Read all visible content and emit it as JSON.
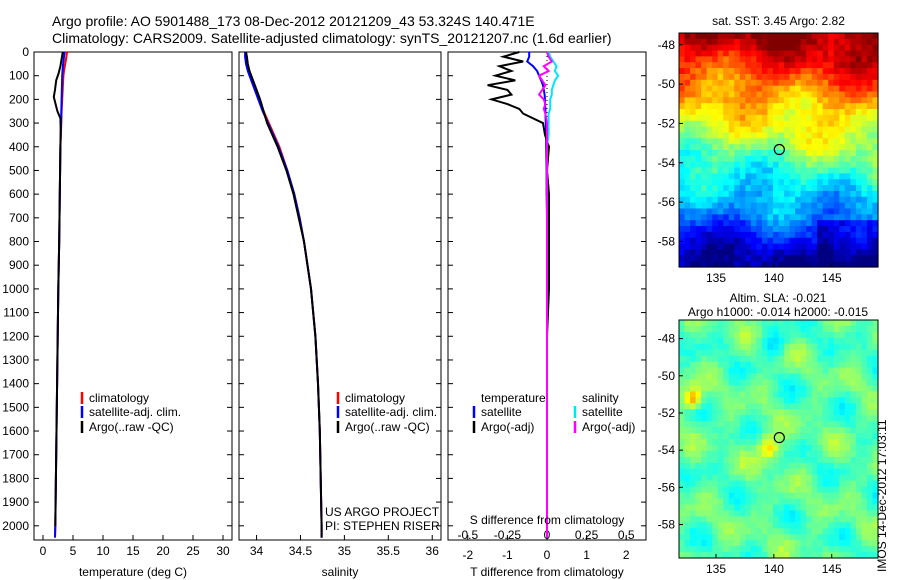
{
  "header": {
    "line1": "Argo profile: AO 5901488_173 08-Dec-2012 20121209_43 53.324S 140.471E",
    "line2": "Climatology: CARS2009. Satellite-adjusted climatology: synTS_20121207.nc (1.6d earlier)"
  },
  "credit": "IMOS 14-Dec-2012 17:03:11",
  "colors": {
    "climatology": "#ff0000",
    "satellite": "#0000ff",
    "argo": "#000000",
    "salinity_satellite": "#00e5ff",
    "salinity_argo": "#ff00ff"
  },
  "chart_data": [
    {
      "type": "line",
      "name": "temperature-profile",
      "xlabel": "temperature (deg C)",
      "ylabel": "",
      "xlim": [
        -1.5,
        31.5
      ],
      "ylim": [
        2060,
        0
      ],
      "xticks": [
        "0",
        "5",
        "10",
        "15",
        "20",
        "25",
        "30"
      ],
      "yticks": [
        "0",
        "100",
        "200",
        "300",
        "400",
        "500",
        "600",
        "700",
        "800",
        "900",
        "1000",
        "1100",
        "1200",
        "1300",
        "1400",
        "1500",
        "1600",
        "1700",
        "1800",
        "1900",
        "2000"
      ],
      "y_depth": [
        0,
        20,
        50,
        80,
        100,
        150,
        200,
        250,
        300,
        400,
        500,
        600,
        700,
        800,
        1000,
        1200,
        1400,
        1600,
        1800,
        2000,
        2050
      ],
      "legend": [
        "climatology",
        "satellite-adj. clim.",
        "Argo(..raw -QC)"
      ],
      "series": [
        {
          "name": "climatology",
          "color": "#ff0000",
          "values": [
            4.0,
            3.9,
            3.7,
            3.5,
            3.4,
            3.3,
            3.2,
            3.1,
            3.05,
            2.9,
            2.85,
            2.8,
            2.75,
            2.7,
            2.55,
            2.45,
            2.35,
            2.25,
            2.15,
            2.05,
            2.0
          ]
        },
        {
          "name": "satellite-adj. clim.",
          "color": "#0000ff",
          "values": [
            3.6,
            3.5,
            3.35,
            3.25,
            3.2,
            3.15,
            3.1,
            3.05,
            3.0,
            2.9,
            2.85,
            2.8,
            2.75,
            2.7,
            2.55,
            2.45,
            2.35,
            2.25,
            2.15,
            2.05,
            2.0
          ]
        },
        {
          "name": "Argo(..raw -QC)",
          "color": "#000000",
          "y_depth": [
            0,
            30,
            60,
            90,
            120,
            160,
            190,
            220,
            250,
            280,
            330,
            400,
            500,
            600,
            800,
            1000,
            1400,
            1800,
            2000
          ],
          "values": [
            3.3,
            3.1,
            2.9,
            2.6,
            2.2,
            2.0,
            1.8,
            2.1,
            2.4,
            2.9,
            2.95,
            2.9,
            2.85,
            2.8,
            2.7,
            2.55,
            2.35,
            2.15,
            2.05
          ]
        }
      ]
    },
    {
      "type": "line",
      "name": "salinity-profile",
      "xlabel": "salinity",
      "ylabel": "",
      "xlim": [
        33.8,
        36.1
      ],
      "ylim": [
        2060,
        0
      ],
      "xticks": [
        "34",
        "34.5",
        "35",
        "35.5",
        "36"
      ],
      "y_depth": [
        0,
        20,
        50,
        80,
        100,
        150,
        200,
        250,
        300,
        400,
        500,
        600,
        700,
        800,
        1000,
        1200,
        1400,
        1600,
        1800,
        2000,
        2050
      ],
      "legend": [
        "climatology",
        "satellite-adj. clim.",
        "Argo(..raw -QC)"
      ],
      "series": [
        {
          "name": "climatology",
          "color": "#ff0000",
          "values": [
            33.88,
            33.88,
            33.89,
            33.91,
            33.93,
            33.98,
            34.03,
            34.08,
            34.14,
            34.26,
            34.35,
            34.43,
            34.49,
            34.54,
            34.62,
            34.67,
            34.7,
            34.72,
            34.73,
            34.74,
            34.74
          ]
        },
        {
          "name": "satellite-adj. clim.",
          "color": "#0000ff",
          "values": [
            33.87,
            33.87,
            33.88,
            33.9,
            33.92,
            33.97,
            34.02,
            34.07,
            34.13,
            34.25,
            34.35,
            34.43,
            34.49,
            34.54,
            34.62,
            34.67,
            34.7,
            34.72,
            34.73,
            34.74,
            34.74
          ]
        },
        {
          "name": "Argo(..raw -QC)",
          "color": "#000000",
          "values": [
            33.88,
            33.89,
            33.9,
            33.92,
            33.94,
            33.99,
            34.04,
            34.08,
            34.12,
            34.24,
            34.34,
            34.42,
            34.48,
            34.54,
            34.62,
            34.67,
            34.7,
            34.72,
            34.73,
            34.74,
            34.74
          ]
        }
      ],
      "annotations": [
        "US ARGO PROJECT",
        "PI: STEPHEN RISER"
      ]
    },
    {
      "type": "line",
      "name": "difference-profile",
      "xlabel": "T difference from climatology",
      "x2label": "S difference from climatology",
      "xlim": [
        -2.5,
        2.5
      ],
      "x2lim": [
        -0.625,
        0.625
      ],
      "ylim": [
        2060,
        0
      ],
      "xticks": [
        "-2",
        "-1",
        "0",
        "1",
        "2"
      ],
      "x2ticks": [
        "-0.5",
        "-0.25",
        "0",
        "0.25",
        "0.5"
      ],
      "legend_headers": [
        "temperature",
        "salinity"
      ],
      "legend": [
        "satellite",
        "Argo(-adj)",
        "satellite",
        "Argo(-adj)"
      ],
      "y_depth": [
        0,
        20,
        40,
        60,
        80,
        100,
        120,
        140,
        160,
        180,
        200,
        220,
        240,
        260,
        300,
        350,
        400,
        500,
        600,
        700,
        800,
        1000,
        1200,
        1500,
        1800,
        2000,
        2050
      ],
      "series": [
        {
          "name": "temperature satellite",
          "color": "#0000ff",
          "axis": "T",
          "values": [
            -0.45,
            -0.45,
            -0.5,
            -0.35,
            -0.25,
            -0.2,
            -0.15,
            -0.1,
            -0.08,
            -0.06,
            -0.05,
            -0.05,
            -0.04,
            -0.04,
            -0.03,
            -0.02,
            -0.02,
            -0.01,
            -0.01,
            0,
            0,
            0,
            0,
            0,
            0,
            0,
            0
          ]
        },
        {
          "name": "temperature Argo(-adj)",
          "color": "#000000",
          "axis": "T",
          "values": [
            -0.7,
            -1.1,
            -0.6,
            -1.2,
            -0.9,
            -1.3,
            -0.8,
            -1.5,
            -1.0,
            -0.9,
            -1.4,
            -1.0,
            -0.7,
            -0.6,
            -0.1,
            -0.05,
            0.05,
            0.0,
            0.05,
            0.05,
            0.05,
            0.05,
            0.0,
            0.0,
            0.0,
            0.0,
            0.0
          ]
        },
        {
          "name": "salinity satellite",
          "color": "#00e5ff",
          "axis": "S",
          "values": [
            0.01,
            0.02,
            0.04,
            0.06,
            0.05,
            0.07,
            0.05,
            0.04,
            0.03,
            0.03,
            0.02,
            0.02,
            0.02,
            0.01,
            0.01,
            0.01,
            0.0,
            0.0,
            0.0,
            0.0,
            0.0,
            0.0,
            0.0,
            0.0,
            0.0,
            0.0,
            0.0
          ]
        },
        {
          "name": "salinity Argo(-adj)",
          "color": "#ff00ff",
          "axis": "S",
          "values": [
            0.0,
            0.01,
            0.03,
            -0.02,
            0.01,
            -0.05,
            -0.03,
            -0.01,
            -0.03,
            -0.05,
            -0.02,
            -0.01,
            -0.02,
            -0.01,
            0.0,
            0.0,
            0.0,
            0.0,
            0.0,
            0.0,
            0.0,
            0.0,
            0.0,
            0.0,
            0.0,
            0.0,
            0.0
          ]
        }
      ]
    },
    {
      "type": "heatmap",
      "name": "sst-map",
      "title": "sat. SST: 3.45  Argo: 2.82",
      "xlim": [
        131.8,
        149.0
      ],
      "ylim": [
        -59.3,
        -47.4
      ],
      "xticks": [
        "135",
        "140",
        "145"
      ],
      "yticks": [
        "-48",
        "-50",
        "-52",
        "-54",
        "-56",
        "-58"
      ],
      "marker": {
        "lon": 140.471,
        "lat": -53.324
      }
    },
    {
      "type": "heatmap",
      "name": "sla-map",
      "title_lines": [
        "Altim. SLA: -0.021",
        "Argo h1000: -0.014 h2000: -0.015"
      ],
      "xlim": [
        131.8,
        149.0
      ],
      "ylim": [
        -59.8,
        -47.0
      ],
      "xticks": [
        "135",
        "140",
        "145"
      ],
      "yticks": [
        "-48",
        "-50",
        "-52",
        "-54",
        "-56",
        "-58"
      ],
      "marker": {
        "lon": 140.471,
        "lat": -53.324
      }
    }
  ]
}
